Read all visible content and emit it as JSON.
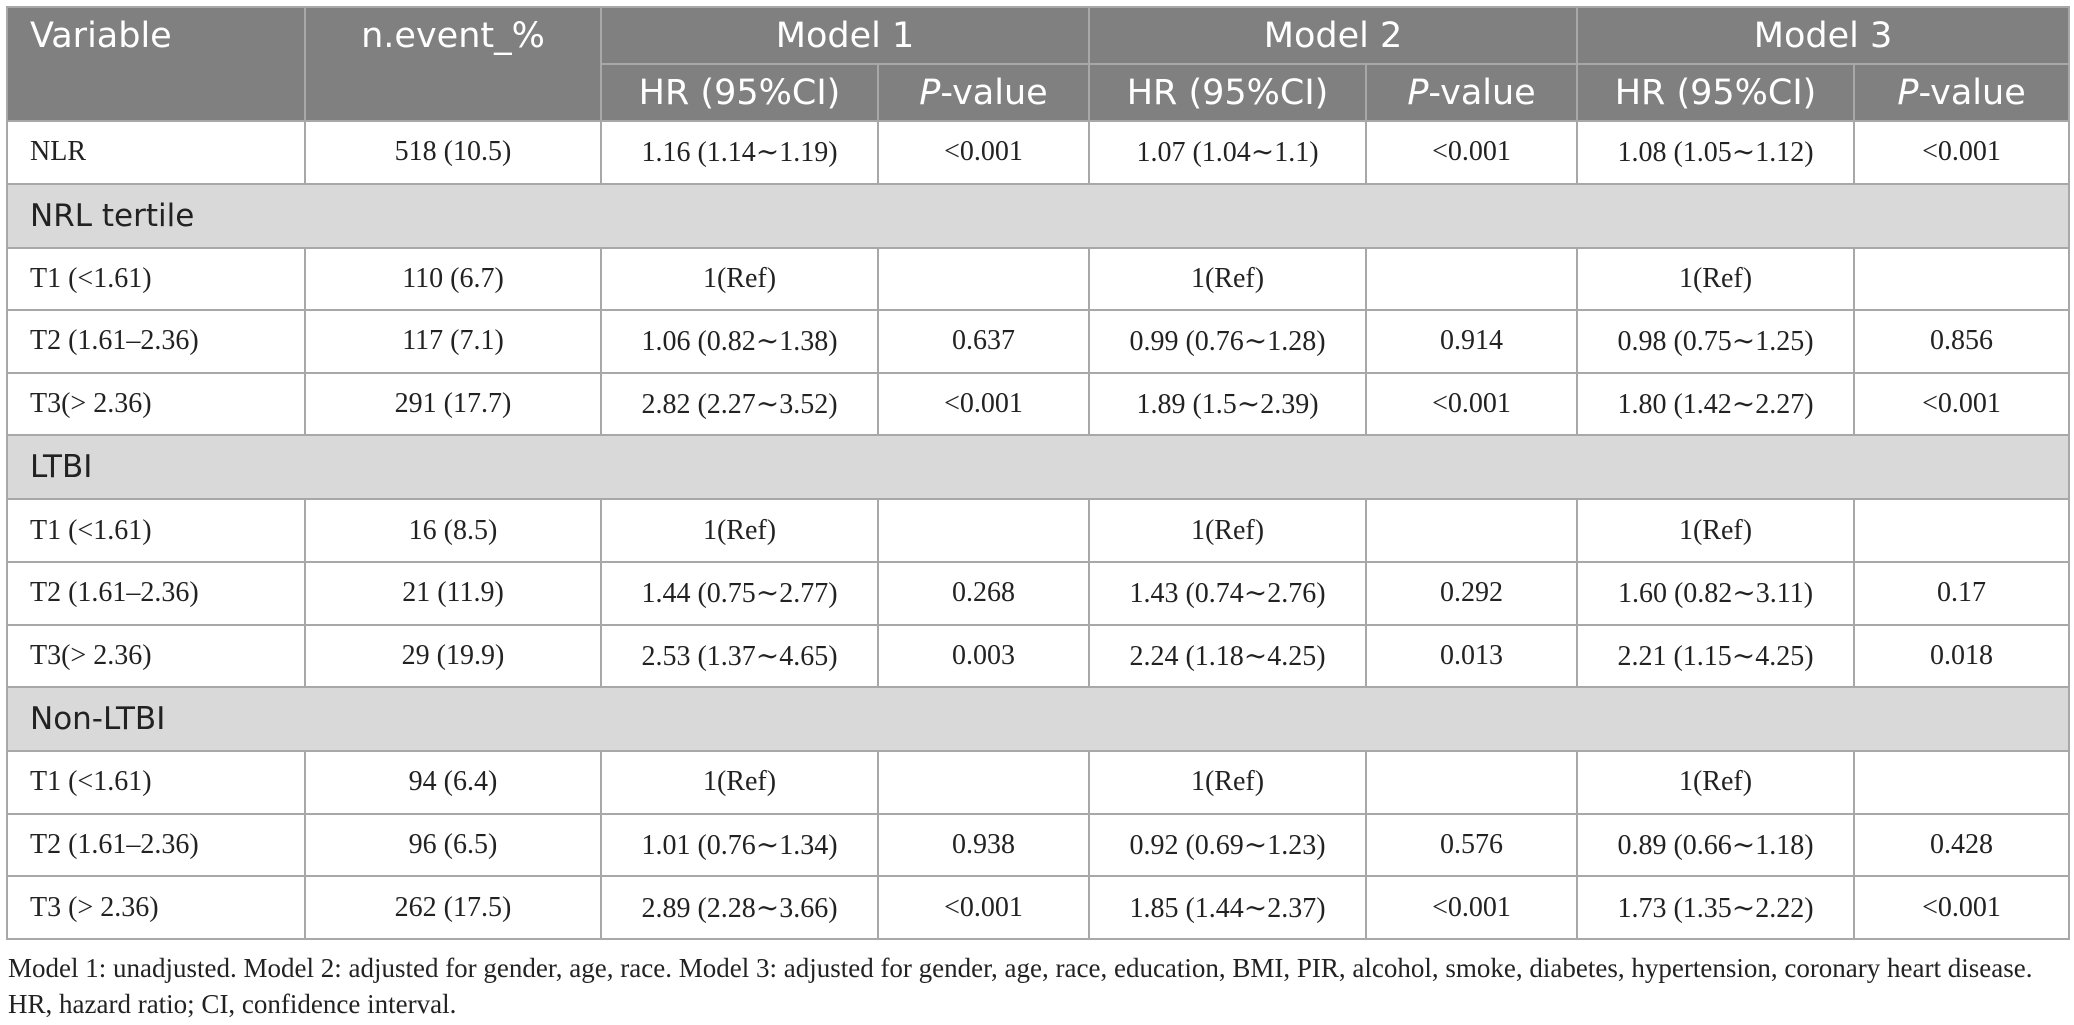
{
  "table": {
    "header_variable": "Variable",
    "header_nevent": "n.event_%",
    "models": [
      "Model 1",
      "Model 2",
      "Model 3"
    ],
    "sub_hr": "HR (95%CI)",
    "sub_p_ital": "P",
    "sub_p_rest": "-value",
    "nlr_row": {
      "variable": "NLR",
      "nevent": "518 (10.5)",
      "m1_hr": "1.16 (1.14∼1.19)",
      "m1_p": "<0.001",
      "m2_hr": "1.07 (1.04∼1.1)",
      "m2_p": "<0.001",
      "m3_hr": "1.08 (1.05∼1.12)",
      "m3_p": "<0.001"
    },
    "sections": [
      {
        "title": "NRL tertile",
        "rows": [
          {
            "variable": "T1 (<1.61)",
            "nevent": "110 (6.7)",
            "m1_hr": "1(Ref)",
            "m1_p": "",
            "m2_hr": "1(Ref)",
            "m2_p": "",
            "m3_hr": "1(Ref)",
            "m3_p": ""
          },
          {
            "variable": "T2 (1.61–2.36)",
            "nevent": "117 (7.1)",
            "m1_hr": "1.06 (0.82∼1.38)",
            "m1_p": "0.637",
            "m2_hr": "0.99 (0.76∼1.28)",
            "m2_p": "0.914",
            "m3_hr": "0.98 (0.75∼1.25)",
            "m3_p": "0.856"
          },
          {
            "variable": "T3(> 2.36)",
            "nevent": "291 (17.7)",
            "m1_hr": "2.82 (2.27∼3.52)",
            "m1_p": "<0.001",
            "m2_hr": "1.89 (1.5∼2.39)",
            "m2_p": "<0.001",
            "m3_hr": "1.80 (1.42∼2.27)",
            "m3_p": "<0.001"
          }
        ]
      },
      {
        "title": "LTBI",
        "rows": [
          {
            "variable": "T1 (<1.61)",
            "nevent": "16 (8.5)",
            "m1_hr": "1(Ref)",
            "m1_p": "",
            "m2_hr": "1(Ref)",
            "m2_p": "",
            "m3_hr": "1(Ref)",
            "m3_p": ""
          },
          {
            "variable": "T2 (1.61–2.36)",
            "nevent": "21 (11.9)",
            "m1_hr": "1.44 (0.75∼2.77)",
            "m1_p": "0.268",
            "m2_hr": "1.43 (0.74∼2.76)",
            "m2_p": "0.292",
            "m3_hr": "1.60 (0.82∼3.11)",
            "m3_p": "0.17"
          },
          {
            "variable": "T3(> 2.36)",
            "nevent": "29 (19.9)",
            "m1_hr": "2.53 (1.37∼4.65)",
            "m1_p": "0.003",
            "m2_hr": "2.24 (1.18∼4.25)",
            "m2_p": "0.013",
            "m3_hr": "2.21 (1.15∼4.25)",
            "m3_p": "0.018"
          }
        ]
      },
      {
        "title": "Non-LTBI",
        "rows": [
          {
            "variable": "T1 (<1.61)",
            "nevent": "94 (6.4)",
            "m1_hr": "1(Ref)",
            "m1_p": "",
            "m2_hr": "1(Ref)",
            "m2_p": "",
            "m3_hr": "1(Ref)",
            "m3_p": ""
          },
          {
            "variable": "T2 (1.61–2.36)",
            "nevent": "96 (6.5)",
            "m1_hr": "1.01 (0.76∼1.34)",
            "m1_p": "0.938",
            "m2_hr": "0.92 (0.69∼1.23)",
            "m2_p": "0.576",
            "m3_hr": "0.89 (0.66∼1.18)",
            "m3_p": "0.428"
          },
          {
            "variable": "T3 (> 2.36)",
            "nevent": "262 (17.5)",
            "m1_hr": "2.89 (2.28∼3.66)",
            "m1_p": "<0.001",
            "m2_hr": "1.85 (1.44∼2.37)",
            "m2_p": "<0.001",
            "m3_hr": "1.73 (1.35∼2.22)",
            "m3_p": "<0.001"
          }
        ]
      }
    ]
  },
  "footnote": "Model 1: unadjusted. Model 2: adjusted for gender, age, race. Model 3: adjusted for gender, age, race, education, BMI, PIR, alcohol, smoke, diabetes, hypertension, coronary heart disease. HR, hazard ratio; CI, confidence interval.",
  "colors": {
    "header_bg": "#808080",
    "section_bg": "#d9d9d9",
    "border": "#a8a8a8"
  }
}
